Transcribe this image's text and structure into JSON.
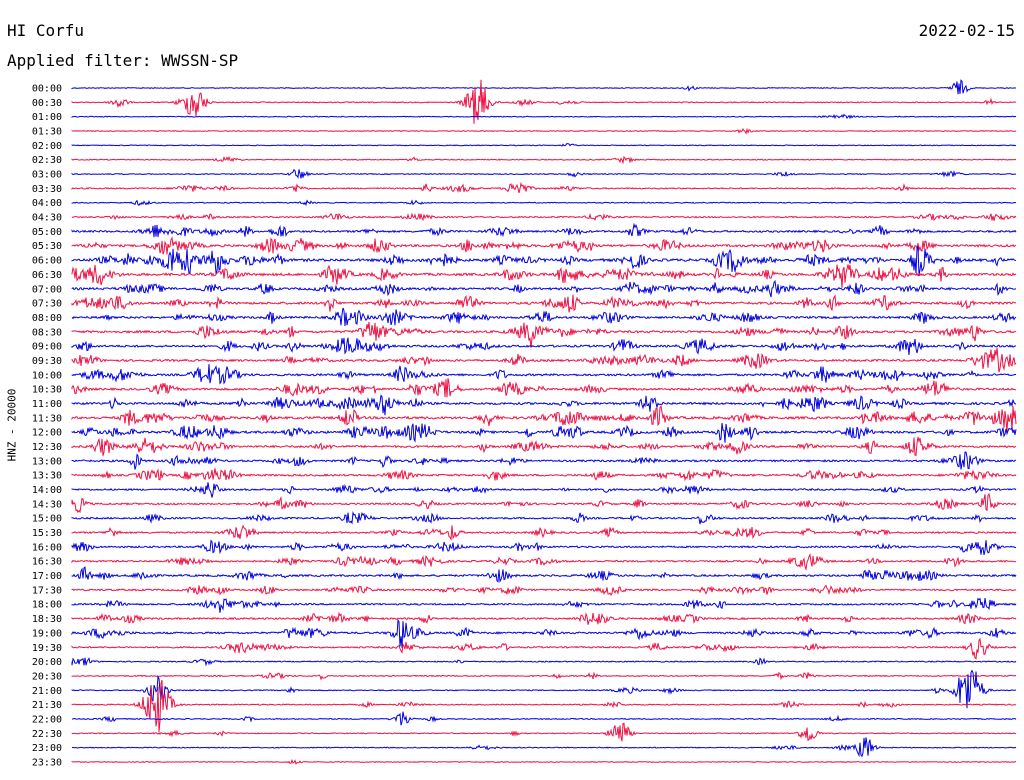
{
  "header": {
    "station": "HI Corfu",
    "date": "2022-02-15",
    "filter": "Applied filter: WWSSN-SP"
  },
  "colors": {
    "trace_a": "#0000e0",
    "trace_b": "#ee1144"
  },
  "chart_data": {
    "type": "line",
    "title": "HI Corfu",
    "ylabel": "HNZ - 20000",
    "xlabel": "",
    "grid": false,
    "trace_labels": [
      "00:00",
      "00:30",
      "01:00",
      "01:30",
      "02:00",
      "02:30",
      "03:00",
      "03:30",
      "04:00",
      "04:30",
      "05:00",
      "05:30",
      "06:00",
      "06:30",
      "07:00",
      "07:30",
      "08:00",
      "08:30",
      "09:00",
      "09:30",
      "10:00",
      "10:30",
      "11:00",
      "11:30",
      "12:00",
      "12:30",
      "13:00",
      "13:30",
      "14:00",
      "14:30",
      "15:00",
      "15:30",
      "16:00",
      "16:30",
      "17:00",
      "17:30",
      "18:00",
      "18:30",
      "19:00",
      "19:30",
      "20:00",
      "20:30",
      "21:00",
      "21:30",
      "22:00",
      "22:30",
      "23:00",
      "23:30"
    ],
    "activity": [
      0.05,
      0.15,
      0.05,
      0.05,
      0.05,
      0.1,
      0.1,
      0.3,
      0.1,
      0.3,
      0.6,
      0.8,
      1.0,
      0.9,
      0.8,
      0.8,
      0.7,
      0.8,
      0.7,
      0.7,
      0.7,
      0.7,
      0.8,
      0.9,
      0.8,
      0.7,
      0.6,
      0.6,
      0.5,
      0.5,
      0.5,
      0.5,
      0.5,
      0.5,
      0.6,
      0.5,
      0.5,
      0.5,
      0.6,
      0.4,
      0.2,
      0.2,
      0.15,
      0.2,
      0.15,
      0.1,
      0.1,
      0.05
    ],
    "events": [
      {
        "trace": 0,
        "time_frac": 0.94,
        "amp": 8
      },
      {
        "trace": 1,
        "time_frac": 0.13,
        "amp": 18
      },
      {
        "trace": 1,
        "time_frac": 0.43,
        "amp": 24
      },
      {
        "trace": 1,
        "time_frac": 0.05,
        "amp": 6
      },
      {
        "trace": 6,
        "time_frac": 0.24,
        "amp": 6
      },
      {
        "trace": 7,
        "time_frac": 0.47,
        "amp": 6
      },
      {
        "trace": 29,
        "time_frac": 0.97,
        "amp": 8
      },
      {
        "trace": 38,
        "time_frac": 0.35,
        "amp": 12
      },
      {
        "trace": 39,
        "time_frac": 0.96,
        "amp": 12
      },
      {
        "trace": 42,
        "time_frac": 0.09,
        "amp": 14
      },
      {
        "trace": 42,
        "time_frac": 0.95,
        "amp": 28
      },
      {
        "trace": 43,
        "time_frac": 0.09,
        "amp": 30
      },
      {
        "trace": 44,
        "time_frac": 0.35,
        "amp": 8
      },
      {
        "trace": 45,
        "time_frac": 0.58,
        "amp": 14
      },
      {
        "trace": 45,
        "time_frac": 0.78,
        "amp": 10
      },
      {
        "trace": 46,
        "time_frac": 0.84,
        "amp": 12
      }
    ]
  }
}
